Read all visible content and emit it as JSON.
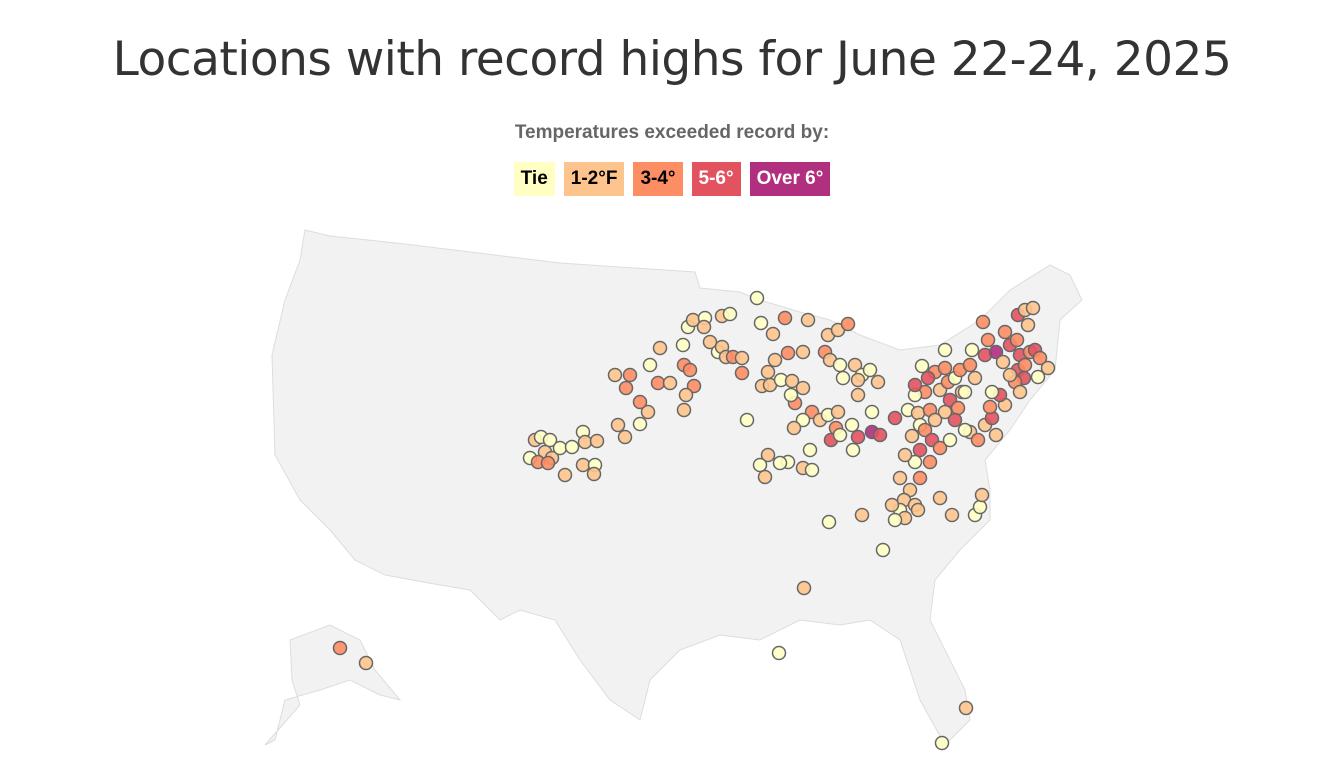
{
  "header": {
    "title": "Locations with record highs for June 22-24, 2025"
  },
  "legend": {
    "title": "Temperatures exceeded record by:",
    "items": [
      {
        "label": "Tie",
        "color": "#ffffc4"
      },
      {
        "label": "1-2°F",
        "color": "#fec48d"
      },
      {
        "label": "3-4°",
        "color": "#fd8d63"
      },
      {
        "label": "5-6°",
        "color": "#e2535f"
      },
      {
        "label": "Over 6°",
        "color": "#b02f7f"
      }
    ]
  }
}
